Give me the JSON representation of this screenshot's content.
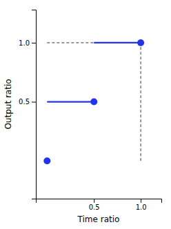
{
  "chart_data": {
    "type": "scatter",
    "xlabel": "Time ratio",
    "ylabel": "Output ratio",
    "xlim": [
      -0.12,
      1.22
    ],
    "ylim": [
      -0.32,
      1.28
    ],
    "xticks": [
      0.5,
      {
        "value": 1.0,
        "label": "1.0"
      }
    ],
    "yticks": [
      0.5,
      {
        "value": 1.0,
        "label": "1.0"
      }
    ],
    "grid": false,
    "series": [
      {
        "type": "scatter",
        "marker": "circle",
        "color": "#2233ee",
        "x": [
          0,
          0.5,
          1.0
        ],
        "values": [
          0,
          0.5,
          1.0
        ]
      },
      {
        "type": "line",
        "line_style": "solid",
        "color": "#2233ee",
        "x": [
          0,
          0.5
        ],
        "values": [
          0.5,
          0.5
        ]
      },
      {
        "type": "line",
        "line_style": "solid",
        "color": "#2233ee",
        "x": [
          0.5,
          1.0
        ],
        "values": [
          1.0,
          1.0
        ]
      },
      {
        "type": "line",
        "line_style": "dashed",
        "color": "#333333",
        "x": [
          0,
          0.5
        ],
        "values": [
          1.0,
          1.0
        ]
      },
      {
        "type": "line",
        "line_style": "dashed",
        "color": "#333333",
        "x": [
          1.0,
          1.0
        ],
        "values": [
          0,
          1.0
        ]
      }
    ]
  }
}
